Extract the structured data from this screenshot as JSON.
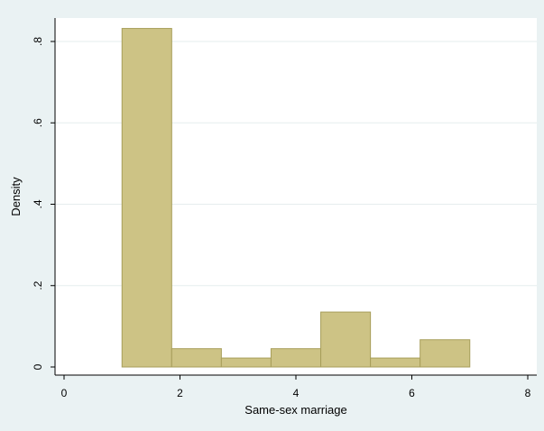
{
  "chart_data": {
    "type": "bar",
    "title": "",
    "xlabel": "Same-sex marriage",
    "ylabel": "Density",
    "xlim": [
      0,
      8
    ],
    "ylim": [
      0,
      0.8
    ],
    "grid": true,
    "x_ticks": [
      {
        "value": 0,
        "label": "0"
      },
      {
        "value": 2,
        "label": "2"
      },
      {
        "value": 4,
        "label": "4"
      },
      {
        "value": 6,
        "label": "6"
      },
      {
        "value": 8,
        "label": "8"
      }
    ],
    "y_ticks": [
      {
        "value": 0,
        "label": "0"
      },
      {
        "value": 0.2,
        "label": ".2"
      },
      {
        "value": 0.4,
        "label": ".4"
      },
      {
        "value": 0.6,
        "label": ".6"
      },
      {
        "value": 0.8,
        "label": ".8"
      }
    ],
    "bins": [
      {
        "start": 1.0,
        "end": 1.857,
        "density": 0.832
      },
      {
        "start": 1.857,
        "end": 2.714,
        "density": 0.045
      },
      {
        "start": 2.714,
        "end": 3.571,
        "density": 0.022
      },
      {
        "start": 3.571,
        "end": 4.429,
        "density": 0.045
      },
      {
        "start": 4.429,
        "end": 5.286,
        "density": 0.135
      },
      {
        "start": 5.286,
        "end": 6.143,
        "density": 0.022
      },
      {
        "start": 6.143,
        "end": 7.0,
        "density": 0.067
      }
    ],
    "colors": {
      "bar_fill": "#cdc385",
      "bar_stroke": "#a79e5a",
      "plot_bg": "#ffffff",
      "outer_bg": "#eaf2f3",
      "grid": "#e6edee"
    }
  }
}
